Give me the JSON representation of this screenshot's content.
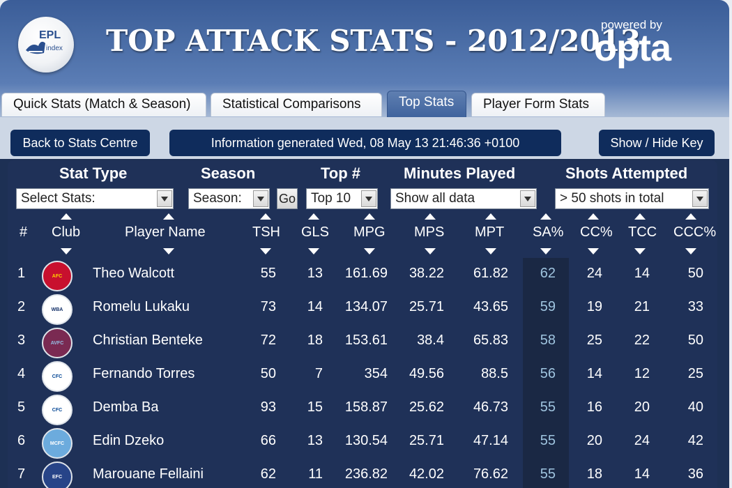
{
  "header": {
    "logo_text": "EPL",
    "logo_sub": "index",
    "title": "TOP ATTACK STATS - 2012/2013",
    "powered_by": "powered by",
    "brand": "opta"
  },
  "tabs": [
    {
      "label": "Quick Stats (Match & Season)"
    },
    {
      "label": "Statistical Comparisons"
    },
    {
      "label": "Top Stats"
    },
    {
      "label": "Player Form Stats"
    }
  ],
  "toolbar": {
    "back_label": "Back to Stats Centre",
    "info_label": "Information generated Wed, 08 May 13 21:46:36 +0100",
    "key_label": "Show / Hide Key"
  },
  "filters": {
    "stat_type": {
      "heading": "Stat Type",
      "value": "Select Stats:"
    },
    "season": {
      "heading": "Season",
      "value": "Season:",
      "go": "Go"
    },
    "top": {
      "heading": "Top #",
      "value": "Top 10"
    },
    "minutes": {
      "heading": "Minutes Played",
      "value": "Show all data"
    },
    "shots": {
      "heading": "Shots Attempted",
      "value": "> 50 shots in total"
    }
  },
  "columns": [
    "#",
    "Club",
    "Player Name",
    "TSH",
    "GLS",
    "MPG",
    "MPS",
    "MPT",
    "SA%",
    "CC%",
    "TCC",
    "CCC%"
  ],
  "rows": [
    {
      "rank": "1",
      "club": "AFC",
      "club_color": "#c8102e",
      "badge_text": "#ffd200",
      "player": "Theo Walcott",
      "tsh": "55",
      "gls": "13",
      "mpg": "161.69",
      "mps": "38.22",
      "mpt": "61.82",
      "sa": "62",
      "cc": "24",
      "tcc": "14",
      "ccc": "50"
    },
    {
      "rank": "2",
      "club": "WBA",
      "club_color": "#ffffff",
      "badge_text": "#122f67",
      "player": "Romelu Lukaku",
      "tsh": "73",
      "gls": "14",
      "mpg": "134.07",
      "mps": "25.71",
      "mpt": "43.65",
      "sa": "59",
      "cc": "19",
      "tcc": "21",
      "ccc": "33"
    },
    {
      "rank": "3",
      "club": "AVFC",
      "club_color": "#7a2a52",
      "badge_text": "#95bfe5",
      "player": "Christian Benteke",
      "tsh": "72",
      "gls": "18",
      "mpg": "153.61",
      "mps": "38.4",
      "mpt": "65.83",
      "sa": "58",
      "cc": "25",
      "tcc": "22",
      "ccc": "50"
    },
    {
      "rank": "4",
      "club": "CFC",
      "club_color": "#ffffff",
      "badge_text": "#034694",
      "player": "Fernando Torres",
      "tsh": "50",
      "gls": "7",
      "mpg": "354",
      "mps": "49.56",
      "mpt": "88.5",
      "sa": "56",
      "cc": "14",
      "tcc": "12",
      "ccc": "25"
    },
    {
      "rank": "5",
      "club": "CFC",
      "club_color": "#ffffff",
      "badge_text": "#034694",
      "player": "Demba Ba",
      "tsh": "93",
      "gls": "15",
      "mpg": "158.87",
      "mps": "25.62",
      "mpt": "46.73",
      "sa": "55",
      "cc": "16",
      "tcc": "20",
      "ccc": "40"
    },
    {
      "rank": "6",
      "club": "MCFC",
      "club_color": "#6cabdd",
      "badge_text": "#ffffff",
      "player": "Edin Dzeko",
      "tsh": "66",
      "gls": "13",
      "mpg": "130.54",
      "mps": "25.71",
      "mpt": "47.14",
      "sa": "55",
      "cc": "20",
      "tcc": "24",
      "ccc": "42"
    },
    {
      "rank": "7",
      "club": "EFC",
      "club_color": "#274488",
      "badge_text": "#ffffff",
      "player": "Marouane Fellaini",
      "tsh": "62",
      "gls": "11",
      "mpg": "236.82",
      "mps": "42.02",
      "mpt": "76.62",
      "sa": "55",
      "cc": "18",
      "tcc": "14",
      "ccc": "36"
    }
  ]
}
